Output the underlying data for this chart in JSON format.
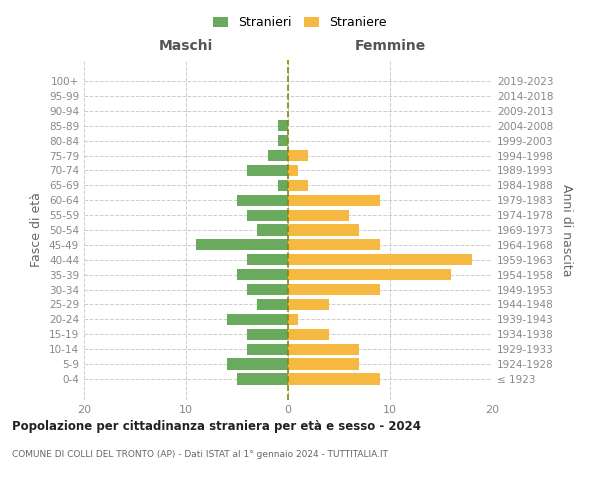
{
  "age_groups": [
    "100+",
    "95-99",
    "90-94",
    "85-89",
    "80-84",
    "75-79",
    "70-74",
    "65-69",
    "60-64",
    "55-59",
    "50-54",
    "45-49",
    "40-44",
    "35-39",
    "30-34",
    "25-29",
    "20-24",
    "15-19",
    "10-14",
    "5-9",
    "0-4"
  ],
  "birth_years": [
    "≤ 1923",
    "1924-1928",
    "1929-1933",
    "1934-1938",
    "1939-1943",
    "1944-1948",
    "1949-1953",
    "1954-1958",
    "1959-1963",
    "1964-1968",
    "1969-1973",
    "1974-1978",
    "1979-1983",
    "1984-1988",
    "1989-1993",
    "1994-1998",
    "1999-2003",
    "2004-2008",
    "2009-2013",
    "2014-2018",
    "2019-2023"
  ],
  "males": [
    0,
    0,
    0,
    1,
    1,
    2,
    4,
    1,
    5,
    4,
    3,
    9,
    4,
    5,
    4,
    3,
    6,
    4,
    4,
    6,
    5
  ],
  "females": [
    0,
    0,
    0,
    0,
    0,
    2,
    1,
    2,
    9,
    6,
    7,
    9,
    18,
    16,
    9,
    4,
    1,
    4,
    7,
    7,
    9
  ],
  "male_color": "#6aaa5e",
  "female_color": "#f5b942",
  "grid_color": "#cccccc",
  "zero_line_color": "#888800",
  "xlim": 20,
  "title": "Popolazione per cittadinanza straniera per età e sesso - 2024",
  "subtitle": "COMUNE DI COLLI DEL TRONTO (AP) - Dati ISTAT al 1° gennaio 2024 - TUTTITALIA.IT",
  "xlabel_left": "Maschi",
  "xlabel_right": "Femmine",
  "ylabel_left": "Fasce di età",
  "ylabel_right": "Anni di nascita",
  "legend_males": "Stranieri",
  "legend_females": "Straniere"
}
